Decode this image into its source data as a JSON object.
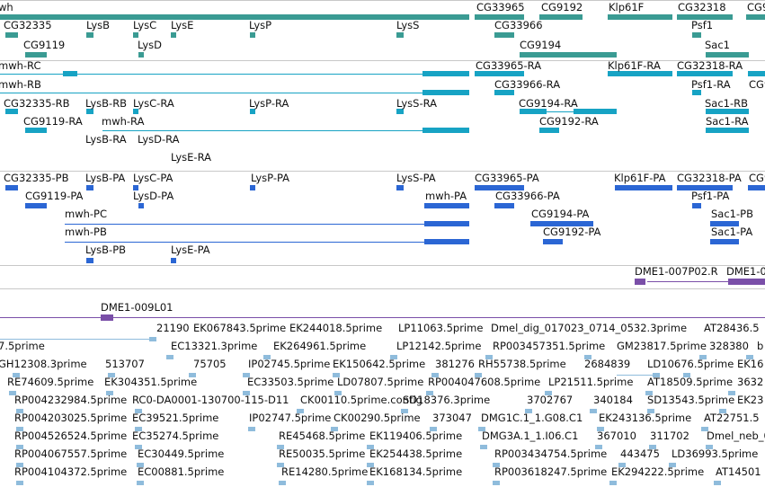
{
  "colors": {
    "gene": "#3a9b93",
    "transcript_a": "#17a3c4",
    "transcript_b": "#2b66d4",
    "clone": "#7a4fa8",
    "est": "#8fbcdc",
    "separator": "#c8c8c8"
  },
  "tracks": {
    "genes": {
      "labels": [
        "wh",
        "CG33965",
        "CG9192",
        "Klp61F",
        "CG32318",
        "CG9",
        "CG32335",
        "LysB",
        "LysC",
        "LysE",
        "LysP",
        "LysS",
        "CG33966",
        "Psf1",
        "CG9119",
        "LysD",
        "CG9194",
        "Sac1"
      ]
    },
    "transcripts_a": {
      "labels": [
        "mwh-RC",
        "CG33965-RA",
        "Klp61F-RA",
        "CG32318-RA",
        "mwh-RB",
        "CG33966-RA",
        "Psf1-RA",
        "CG9",
        "CG32335-RB",
        "LysB-RB",
        "LysC-RA",
        "LysP-RA",
        "LysS-RA",
        "CG9194-RA",
        "Sac1-RB",
        "CG9119-RA",
        "mwh-RA",
        "CG9192-RA",
        "Sac1-RA",
        "LysB-RA",
        "LysD-RA",
        "LysE-RA"
      ]
    },
    "transcripts_b": {
      "labels": [
        "CG32335-PB",
        "LysB-PA",
        "LysC-PA",
        "LysP-PA",
        "LysS-PA",
        "CG33965-PA",
        "Klp61F-PA",
        "CG32318-PA",
        "CG9",
        "CG9119-PA",
        "LysD-PA",
        "mwh-PA",
        "CG33966-PA",
        "Psf1-PA",
        "mwh-PC",
        "CG9194-PA",
        "Sac1-PB",
        "mwh-PB",
        "CG9192-PA",
        "Sac1-PA",
        "LysB-PB",
        "LysE-PA"
      ]
    },
    "clones": {
      "labels": [
        "DME1-007P02.R",
        "DME1-0",
        "DME1-009L01"
      ]
    },
    "ests": {
      "labels": [
        "21190",
        "EK067843.5prime",
        "EK244018.5prime",
        "LP11063.5prime",
        "Dmel_dig_017023_0714_0532.3prime",
        "AT28436.5",
        "7.5prime",
        "EC13321.3prime",
        "EK264961.5prime",
        "LP12142.5prime",
        "RP003457351.5prime",
        "GM23817.5prime",
        "328380",
        "b",
        "GH12308.3prime",
        "513707",
        "75705",
        "IP02745.5prime",
        "EK150642.5prime",
        "381276",
        "RH55738.5prime",
        "2684839",
        "LD10676.5prime",
        "EK16",
        "RE74609.5prime",
        "EK304351.5prime",
        "EC33503.5prime",
        "LD07807.5prime",
        "RP004047608.5prime",
        "LP21511.5prime",
        "AT18509.5prime",
        "3632",
        "RP004232984.5prime",
        "RC0-DA0001-130700-115-D11",
        "CK00110.5prime.contig",
        "SD18376.3prime",
        "3702767",
        "340184",
        "SD13543.5prime",
        "EK23",
        "RP004203025.5prime",
        "EC39521.5prime",
        "IP02747.5prime",
        "CK00290.5prime",
        "373047",
        "DMG1C.1_1.G08.C1",
        "EK243136.5prime",
        "AT22751.5",
        "RP004526524.5prime",
        "EC35274.5prime",
        "RE45468.5prime",
        "EK119406.5prime",
        "DMG3A.1_1.I06.C1",
        "367010",
        "311702",
        "Dmel_neb_00",
        "RP004067557.5prime",
        "EC30449.5prime",
        "RE50035.5prime",
        "EK254438.5prime",
        "RP003434754.5prime",
        "443475",
        "LD36993.5prime",
        "RP004104372.5prime",
        "EC00881.5prime",
        "RE14280.5prime",
        "EK168134.5prime",
        "RP003618247.5prime",
        "EK294222.5prime",
        "AT14501"
      ]
    }
  }
}
